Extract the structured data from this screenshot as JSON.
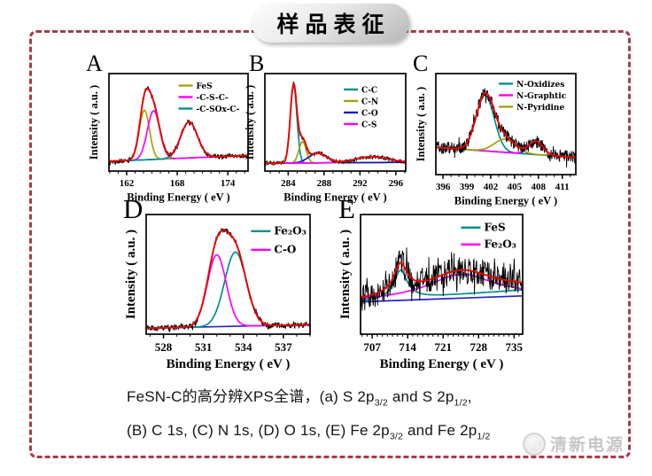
{
  "page": {
    "background": "#ffffff",
    "frame_color": "#a63c46"
  },
  "title": {
    "text": "样品表征"
  },
  "caption": {
    "line1": "FeSN-C的高分辨XPS全谱，(a) S 2p_{3/2} and S 2p_{1/2},",
    "line2": "(B) C 1s, (C) N 1s, (D) O 1s, (E) Fe 2p_{3/2} and Fe 2p_{1/2}"
  },
  "watermark": {
    "text": "清新电源"
  },
  "chart_data": [
    {
      "panel_label": "A",
      "type": "line",
      "subject": "S 2p XPS spectrum",
      "xlabel": "Binding Energy ( eV )",
      "ylabel": "Intensity ( a.u. )",
      "xrange": [
        159.9,
        176.4
      ],
      "xticks": [
        162,
        168,
        174
      ],
      "xminor_step": 1,
      "yaxis": "arbitrary units, no ticks",
      "grid": false,
      "legend_pos": "upper-right",
      "raw_data_color": "#000000",
      "envelope_color": "#ee0000",
      "baseline": {
        "color": "#2222cc",
        "start": 0.1,
        "end": 0.16
      },
      "noise_amplitude": 0.022,
      "series": [
        {
          "name": "FeS",
          "color": "#aca20a",
          "shape": "gaussian",
          "center_eV": 164.1,
          "width_eV": 0.85,
          "rel_height": 0.51
        },
        {
          "name": "-C-S-C-",
          "color": "#ff00ff",
          "shape": "gaussian",
          "center_eV": 165.2,
          "width_eV": 1.05,
          "rel_height": 0.5
        },
        {
          "name": "-C-SOx-C-",
          "color": "#009090",
          "shape": "gaussian",
          "center_eV": 169.4,
          "width_eV": 1.4,
          "rel_height": 0.37
        }
      ]
    },
    {
      "panel_label": "B",
      "type": "line",
      "subject": "C 1s XPS spectrum",
      "xlabel": "Binding Energy ( eV )",
      "ylabel": "Intensity ( a.u. )",
      "xrange": [
        281.4,
        297.1
      ],
      "xticks": [
        284,
        288,
        292,
        296
      ],
      "xminor_step": 1,
      "yaxis": "arbitrary units, no ticks",
      "grid": false,
      "legend_pos": "upper-right",
      "raw_data_color": "#000000",
      "envelope_color": "#ee0000",
      "baseline": {
        "color": "#2222cc",
        "start": 0.08,
        "end": 0.09
      },
      "noise_amplitude": 0.016,
      "series": [
        {
          "name": "C-C",
          "color": "#009090",
          "shape": "gaussian",
          "center_eV": 284.6,
          "width_eV": 0.52,
          "rel_height": 0.8
        },
        {
          "name": "C-N",
          "color": "#a2a20f",
          "shape": "gaussian",
          "center_eV": 285.6,
          "width_eV": 0.58,
          "rel_height": 0.22
        },
        {
          "name": "C-O",
          "color": "#1c1ca8",
          "shape": "gaussian",
          "center_eV": 287.3,
          "width_eV": 1.4,
          "rel_height": 0.1
        },
        {
          "name": "C-S",
          "color": "#ff00ff",
          "shape": "gaussian",
          "center_eV": 293.3,
          "width_eV": 2.5,
          "rel_height": 0.06
        }
      ]
    },
    {
      "panel_label": "C",
      "type": "line",
      "subject": "N 1s XPS spectrum",
      "xlabel": "Binding Energy ( eV )",
      "ylabel": "Intensity ( a.u. )",
      "xrange": [
        395.1,
        412.7
      ],
      "xticks": [
        396,
        399,
        402,
        405,
        408,
        411
      ],
      "xminor_step": 1,
      "yaxis": "arbitrary units, no ticks",
      "grid": false,
      "legend_pos": "upper-right",
      "raw_data_color": "#000000",
      "envelope_color": "#ee0000",
      "baseline": {
        "color": "#3a3ac8",
        "start": 0.27,
        "end": 0.17
      },
      "noise_amplitude": 0.062,
      "series": [
        {
          "name": "N-Oxidizes",
          "color": "#009090",
          "shape": "gaussian",
          "center_eV": 401.3,
          "width_eV": 1.6,
          "rel_height": 0.55
        },
        {
          "name": "N-Graphtic",
          "color": "#ff00ff",
          "shape": "gaussian",
          "center_eV": 407.7,
          "width_eV": 1.25,
          "rel_height": 0.13
        },
        {
          "name": "N-Pyridine",
          "color": "#a2a20f",
          "shape": "gaussian",
          "center_eV": 403.8,
          "width_eV": 1.9,
          "rel_height": 0.13
        }
      ]
    },
    {
      "panel_label": "D",
      "type": "line",
      "subject": "O 1s XPS spectrum",
      "xlabel": "Binding Energy ( eV )",
      "ylabel": "Intensity ( a.u. )",
      "xrange": [
        526.7,
        539.0
      ],
      "xticks": [
        528,
        531,
        534,
        537
      ],
      "xminor_step": 1,
      "yaxis": "arbitrary units, no ticks",
      "grid": false,
      "legend_pos": "upper-right",
      "raw_data_color": "#000000",
      "envelope_color": "#ee0000",
      "baseline": {
        "color": "#2222cc",
        "start": 0.05,
        "end": 0.08
      },
      "noise_amplitude": 0.022,
      "series": [
        {
          "name": "Fe₂O₃",
          "color": "#009090",
          "shape": "gaussian",
          "center_eV": 533.4,
          "width_eV": 1.15,
          "rel_height": 0.62
        },
        {
          "name": "C-O",
          "color": "#ff00ff",
          "shape": "gaussian",
          "center_eV": 532.0,
          "width_eV": 1.0,
          "rel_height": 0.6
        }
      ]
    },
    {
      "panel_label": "E",
      "type": "line",
      "subject": "Fe 2p XPS spectrum",
      "xlabel": "Binding Energy ( eV )",
      "ylabel": "Intensity ( a.u. )",
      "xrange": [
        704.7,
        736.7
      ],
      "xticks": [
        707,
        714,
        721,
        728,
        735
      ],
      "xminor_step": 1,
      "yaxis": "arbitrary units, no ticks",
      "grid": false,
      "legend_pos": "upper-right",
      "raw_data_color": "#000000",
      "envelope_color": "#ee0000",
      "baseline": {
        "color": "#2222cc",
        "start": 0.27,
        "end": 0.32
      },
      "noise_amplitude": 0.115,
      "series": [
        {
          "name": "FeS",
          "color": "#009090",
          "shape": "lorentzian",
          "center_eV": 712.6,
          "width_eV": 1.6,
          "rel_height": 0.24,
          "tail_rise": 0.05
        },
        {
          "name": "Fe₂O₃",
          "color": "#ff00ff",
          "shape": "lorentzian",
          "center_eV": 724.5,
          "width_eV": 8.0,
          "rel_height": 0.2
        }
      ]
    }
  ]
}
